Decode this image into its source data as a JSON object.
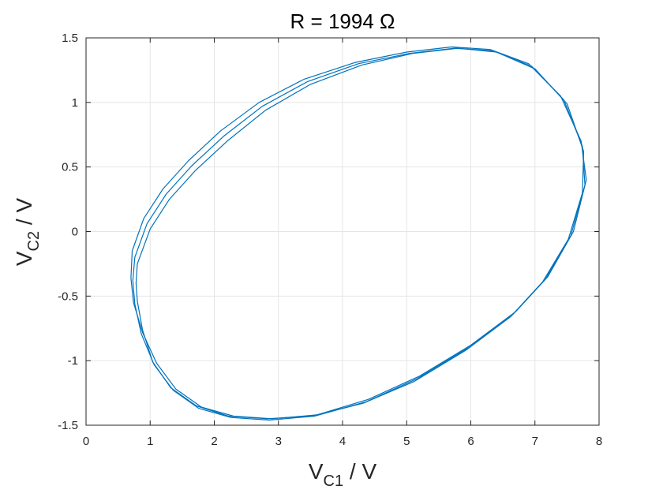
{
  "chart_data": {
    "type": "line",
    "title": "R = 1994 Ω",
    "xlabel": {
      "main": "V",
      "sub": "C1",
      "suffix": " / V"
    },
    "ylabel": {
      "main": "V",
      "sub": "C2",
      "suffix": " / V"
    },
    "xlim": [
      0,
      8
    ],
    "ylim": [
      -1.5,
      1.5
    ],
    "xticks": [
      0,
      1,
      2,
      3,
      4,
      5,
      6,
      7,
      8
    ],
    "yticks": [
      -1.5,
      -1,
      -0.5,
      0,
      0.5,
      1,
      1.5
    ],
    "xtick_labels": [
      "0",
      "1",
      "2",
      "3",
      "4",
      "5",
      "6",
      "7",
      "8"
    ],
    "ytick_labels": [
      "-1.5",
      "-1",
      "-0.5",
      "0",
      "0.5",
      "1",
      "1.5"
    ],
    "grid": true,
    "line_color": "#0072BD",
    "series": [
      {
        "points": [
          [
            0.72,
            -0.15
          ],
          [
            0.9,
            0.1
          ],
          [
            1.2,
            0.33
          ],
          [
            1.6,
            0.55
          ],
          [
            2.1,
            0.78
          ],
          [
            2.7,
            1.0
          ],
          [
            3.4,
            1.18
          ],
          [
            4.2,
            1.31
          ],
          [
            5.0,
            1.39
          ],
          [
            5.7,
            1.43
          ],
          [
            6.3,
            1.41
          ],
          [
            6.9,
            1.3
          ],
          [
            7.4,
            1.05
          ],
          [
            7.72,
            0.7
          ],
          [
            7.8,
            0.4
          ],
          [
            7.6,
            0.0
          ],
          [
            7.2,
            -0.35
          ],
          [
            6.7,
            -0.62
          ],
          [
            6.0,
            -0.88
          ],
          [
            5.2,
            -1.12
          ],
          [
            4.4,
            -1.3
          ],
          [
            3.6,
            -1.42
          ],
          [
            2.9,
            -1.45
          ],
          [
            2.3,
            -1.43
          ],
          [
            1.8,
            -1.36
          ],
          [
            1.4,
            -1.22
          ],
          [
            1.1,
            -1.02
          ],
          [
            0.88,
            -0.78
          ],
          [
            0.74,
            -0.55
          ],
          [
            0.7,
            -0.36
          ],
          [
            0.72,
            -0.15
          ]
        ]
      },
      {
        "points": [
          [
            0.76,
            -0.2
          ],
          [
            0.95,
            0.06
          ],
          [
            1.25,
            0.29
          ],
          [
            1.65,
            0.51
          ],
          [
            2.15,
            0.74
          ],
          [
            2.75,
            0.97
          ],
          [
            3.45,
            1.16
          ],
          [
            4.25,
            1.3
          ],
          [
            5.05,
            1.38
          ],
          [
            5.75,
            1.42
          ],
          [
            6.35,
            1.4
          ],
          [
            6.95,
            1.28
          ],
          [
            7.45,
            1.02
          ],
          [
            7.74,
            0.66
          ],
          [
            7.78,
            0.36
          ],
          [
            7.56,
            -0.03
          ],
          [
            7.16,
            -0.37
          ],
          [
            6.66,
            -0.64
          ],
          [
            5.96,
            -0.9
          ],
          [
            5.16,
            -1.14
          ],
          [
            4.36,
            -1.32
          ],
          [
            3.56,
            -1.43
          ],
          [
            2.86,
            -1.46
          ],
          [
            2.26,
            -1.44
          ],
          [
            1.76,
            -1.37
          ],
          [
            1.36,
            -1.23
          ],
          [
            1.06,
            -1.03
          ],
          [
            0.86,
            -0.79
          ],
          [
            0.76,
            -0.56
          ],
          [
            0.73,
            -0.38
          ],
          [
            0.76,
            -0.2
          ]
        ]
      },
      {
        "points": [
          [
            0.8,
            -0.25
          ],
          [
            1.0,
            0.02
          ],
          [
            1.3,
            0.25
          ],
          [
            1.7,
            0.47
          ],
          [
            2.2,
            0.7
          ],
          [
            2.8,
            0.94
          ],
          [
            3.5,
            1.14
          ],
          [
            4.3,
            1.29
          ],
          [
            5.1,
            1.38
          ],
          [
            5.8,
            1.42
          ],
          [
            6.4,
            1.39
          ],
          [
            7.0,
            1.26
          ],
          [
            7.5,
            0.99
          ],
          [
            7.76,
            0.62
          ],
          [
            7.74,
            0.3
          ],
          [
            7.52,
            -0.06
          ],
          [
            7.12,
            -0.39
          ],
          [
            6.62,
            -0.66
          ],
          [
            5.92,
            -0.92
          ],
          [
            5.12,
            -1.16
          ],
          [
            4.32,
            -1.33
          ],
          [
            3.52,
            -1.43
          ],
          [
            2.82,
            -1.45
          ],
          [
            2.22,
            -1.43
          ],
          [
            1.72,
            -1.35
          ],
          [
            1.32,
            -1.21
          ],
          [
            1.04,
            -1.01
          ],
          [
            0.88,
            -0.76
          ],
          [
            0.8,
            -0.54
          ],
          [
            0.78,
            -0.4
          ],
          [
            0.8,
            -0.25
          ]
        ]
      }
    ]
  }
}
